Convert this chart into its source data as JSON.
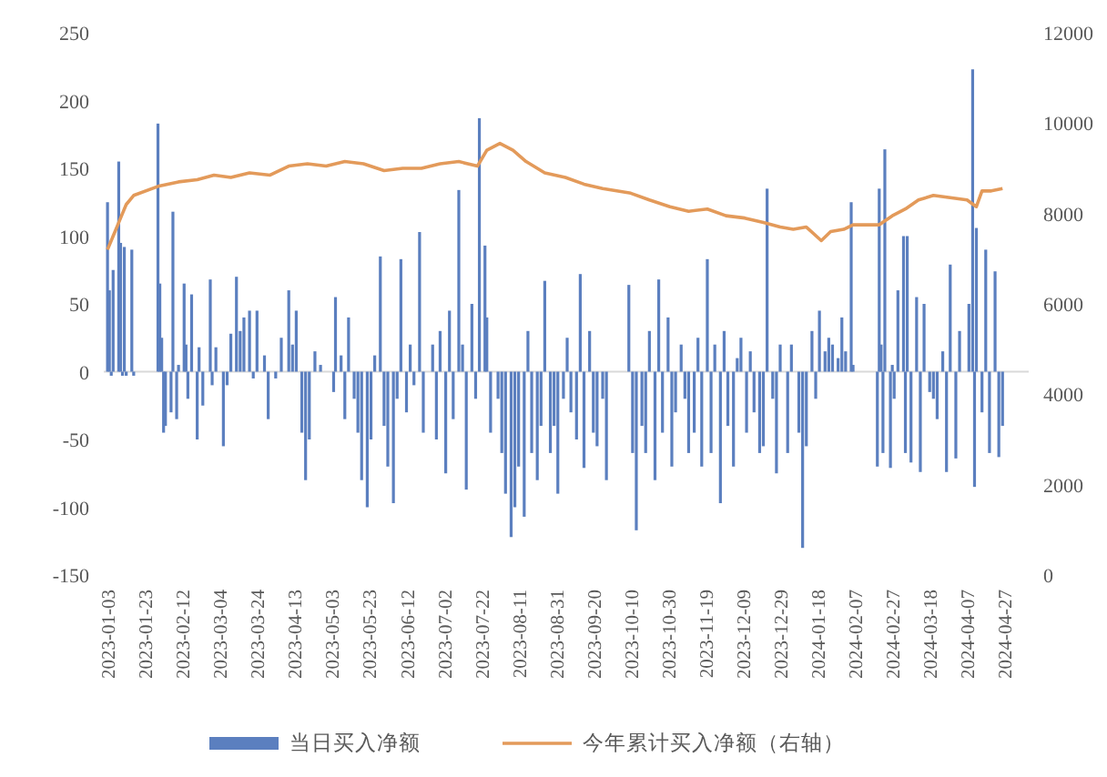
{
  "chart_data": {
    "type": "bar",
    "legend": "bottom",
    "xlim": [
      "2023-01-01",
      "2024-05-10"
    ],
    "xticks": [
      "2023-01-03",
      "2023-01-23",
      "2023-02-12",
      "2023-03-04",
      "2023-03-24",
      "2023-04-13",
      "2023-05-03",
      "2023-05-23",
      "2023-06-12",
      "2023-07-02",
      "2023-07-22",
      "2023-08-11",
      "2023-08-31",
      "2023-09-20",
      "2023-10-10",
      "2023-10-30",
      "2023-11-19",
      "2023-12-09",
      "2023-12-29",
      "2024-01-18",
      "2024-02-07",
      "2024-02-27",
      "2024-03-18",
      "2024-04-07",
      "2024-04-27"
    ],
    "ylim": [
      -150,
      250
    ],
    "yticks": [
      -150,
      -100,
      -50,
      0,
      50,
      100,
      150,
      200,
      250
    ],
    "y2lim": [
      0,
      12000
    ],
    "y2ticks": [
      0,
      2000,
      4000,
      6000,
      8000,
      10000,
      12000
    ],
    "series": [
      {
        "name": "当日买入净额",
        "color": "#5b7fbf",
        "x": [
          "2023-01-03",
          "2023-01-04",
          "2023-01-05",
          "2023-01-06",
          "2023-01-09",
          "2023-01-10",
          "2023-01-11",
          "2023-01-12",
          "2023-01-13",
          "2023-01-16",
          "2023-01-17",
          "2023-01-30",
          "2023-01-31",
          "2023-02-01",
          "2023-02-02",
          "2023-02-03",
          "2023-02-06",
          "2023-02-07",
          "2023-02-09",
          "2023-02-10",
          "2023-02-13",
          "2023-02-14",
          "2023-02-15",
          "2023-02-17",
          "2023-02-20",
          "2023-02-21",
          "2023-02-23",
          "2023-02-27",
          "2023-02-28",
          "2023-03-02",
          "2023-03-06",
          "2023-03-08",
          "2023-03-10",
          "2023-03-13",
          "2023-03-15",
          "2023-03-17",
          "2023-03-20",
          "2023-03-22",
          "2023-03-24",
          "2023-03-28",
          "2023-03-30",
          "2023-04-03",
          "2023-04-06",
          "2023-04-10",
          "2023-04-12",
          "2023-04-14",
          "2023-04-17",
          "2023-04-19",
          "2023-04-21",
          "2023-04-24",
          "2023-04-27",
          "2023-05-04",
          "2023-05-05",
          "2023-05-08",
          "2023-05-10",
          "2023-05-12",
          "2023-05-15",
          "2023-05-17",
          "2023-05-19",
          "2023-05-22",
          "2023-05-24",
          "2023-05-26",
          "2023-05-29",
          "2023-05-31",
          "2023-06-02",
          "2023-06-05",
          "2023-06-07",
          "2023-06-09",
          "2023-06-12",
          "2023-06-14",
          "2023-06-16",
          "2023-06-19",
          "2023-06-21",
          "2023-06-26",
          "2023-06-28",
          "2023-06-30",
          "2023-07-03",
          "2023-07-05",
          "2023-07-07",
          "2023-07-10",
          "2023-07-12",
          "2023-07-14",
          "2023-07-17",
          "2023-07-19",
          "2023-07-21",
          "2023-07-24",
          "2023-07-25",
          "2023-07-27",
          "2023-07-31",
          "2023-08-02",
          "2023-08-04",
          "2023-08-07",
          "2023-08-09",
          "2023-08-11",
          "2023-08-14",
          "2023-08-16",
          "2023-08-18",
          "2023-08-21",
          "2023-08-23",
          "2023-08-25",
          "2023-08-28",
          "2023-08-30",
          "2023-09-01",
          "2023-09-04",
          "2023-09-06",
          "2023-09-08",
          "2023-09-11",
          "2023-09-13",
          "2023-09-15",
          "2023-09-18",
          "2023-09-20",
          "2023-09-22",
          "2023-09-25",
          "2023-09-27",
          "2023-10-09",
          "2023-10-11",
          "2023-10-13",
          "2023-10-16",
          "2023-10-18",
          "2023-10-20",
          "2023-10-23",
          "2023-10-25",
          "2023-10-27",
          "2023-10-30",
          "2023-11-01",
          "2023-11-03",
          "2023-11-06",
          "2023-11-08",
          "2023-11-10",
          "2023-11-13",
          "2023-11-15",
          "2023-11-17",
          "2023-11-20",
          "2023-11-22",
          "2023-11-24",
          "2023-11-27",
          "2023-11-29",
          "2023-12-01",
          "2023-12-04",
          "2023-12-06",
          "2023-12-08",
          "2023-12-11",
          "2023-12-13",
          "2023-12-15",
          "2023-12-18",
          "2023-12-20",
          "2023-12-22",
          "2023-12-25",
          "2023-12-27",
          "2023-12-29",
          "2024-01-02",
          "2024-01-04",
          "2024-01-08",
          "2024-01-10",
          "2024-01-12",
          "2024-01-15",
          "2024-01-17",
          "2024-01-19",
          "2024-01-22",
          "2024-01-24",
          "2024-01-26",
          "2024-01-29",
          "2024-01-31",
          "2024-02-02",
          "2024-02-05",
          "2024-02-06",
          "2024-02-19",
          "2024-02-20",
          "2024-02-21",
          "2024-02-22",
          "2024-02-23",
          "2024-02-26",
          "2024-02-27",
          "2024-02-28",
          "2024-03-01",
          "2024-03-04",
          "2024-03-05",
          "2024-03-06",
          "2024-03-08",
          "2024-03-11",
          "2024-03-13",
          "2024-03-15",
          "2024-03-18",
          "2024-03-20",
          "2024-03-22",
          "2024-03-25",
          "2024-03-27",
          "2024-03-29",
          "2024-04-01",
          "2024-04-03",
          "2024-04-08",
          "2024-04-10",
          "2024-04-11",
          "2024-04-12",
          "2024-04-15",
          "2024-04-17",
          "2024-04-19",
          "2024-04-22",
          "2024-04-24",
          "2024-04-26"
        ],
        "values": [
          125,
          60,
          -3,
          75,
          155,
          95,
          -3,
          92,
          -3,
          90,
          -3,
          183,
          65,
          25,
          -45,
          -40,
          -30,
          118,
          -35,
          5,
          65,
          20,
          -20,
          57,
          -50,
          18,
          -25,
          68,
          -10,
          18,
          -55,
          -10,
          28,
          70,
          30,
          40,
          45,
          -5,
          45,
          12,
          -35,
          -5,
          25,
          60,
          20,
          45,
          -45,
          -80,
          -50,
          15,
          5,
          -15,
          55,
          12,
          -35,
          40,
          -20,
          -45,
          -80,
          -100,
          -50,
          12,
          85,
          -40,
          -70,
          -97,
          -20,
          83,
          -30,
          20,
          -10,
          103,
          -45,
          20,
          -50,
          30,
          -75,
          45,
          -35,
          134,
          20,
          -87,
          50,
          -20,
          187,
          93,
          40,
          -45,
          -20,
          -60,
          -90,
          -122,
          -100,
          -70,
          -107,
          30,
          -60,
          -80,
          -40,
          67,
          -60,
          -40,
          -90,
          -20,
          25,
          -30,
          -50,
          72,
          -71,
          30,
          -45,
          -55,
          -20,
          -80,
          64,
          -60,
          -117,
          -40,
          -60,
          30,
          -80,
          68,
          -45,
          40,
          -70,
          -30,
          20,
          -20,
          -60,
          -45,
          25,
          -70,
          83,
          -60,
          20,
          -97,
          30,
          -40,
          -70,
          10,
          25,
          -45,
          15,
          -30,
          -60,
          -55,
          135,
          -20,
          -75,
          20,
          -60,
          20,
          -45,
          -130,
          -55,
          30,
          -20,
          45,
          15,
          25,
          20,
          10,
          40,
          15,
          125,
          5,
          -70,
          135,
          20,
          -60,
          164,
          -71,
          5,
          -20,
          60,
          100,
          -60,
          100,
          -67,
          55,
          -74,
          50,
          -15,
          -20,
          -35,
          15,
          -74,
          79,
          -64,
          30,
          50,
          223,
          -85,
          106,
          -30,
          90,
          -60,
          74,
          -63,
          -40
        ]
      },
      {
        "name": "今年累计买入净额（右轴）",
        "type": "line",
        "axis": "y2",
        "color": "#e39a5a",
        "x": [
          "2023-01-03",
          "2023-01-06",
          "2023-01-10",
          "2023-01-13",
          "2023-01-17",
          "2023-01-30",
          "2023-02-10",
          "2023-02-20",
          "2023-03-01",
          "2023-03-10",
          "2023-03-20",
          "2023-03-31",
          "2023-04-10",
          "2023-04-20",
          "2023-04-30",
          "2023-05-10",
          "2023-05-20",
          "2023-05-31",
          "2023-06-10",
          "2023-06-20",
          "2023-06-30",
          "2023-07-10",
          "2023-07-20",
          "2023-07-25",
          "2023-08-01",
          "2023-08-08",
          "2023-08-15",
          "2023-08-25",
          "2023-09-05",
          "2023-09-15",
          "2023-09-25",
          "2023-10-10",
          "2023-10-20",
          "2023-10-31",
          "2023-11-10",
          "2023-11-20",
          "2023-11-30",
          "2023-12-10",
          "2023-12-20",
          "2023-12-29",
          "2024-01-05",
          "2024-01-12",
          "2024-01-20",
          "2024-01-25",
          "2024-02-01",
          "2024-02-06",
          "2024-02-20",
          "2024-02-27",
          "2024-03-05",
          "2024-03-12",
          "2024-03-20",
          "2024-03-29",
          "2024-04-07",
          "2024-04-12",
          "2024-04-15",
          "2024-04-20",
          "2024-04-26"
        ],
        "values": [
          7200,
          7500,
          7900,
          8200,
          8400,
          8600,
          8700,
          8750,
          8850,
          8800,
          8900,
          8850,
          9050,
          9100,
          9050,
          9150,
          9100,
          8950,
          9000,
          9000,
          9100,
          9150,
          9050,
          9400,
          9550,
          9400,
          9150,
          8900,
          8800,
          8650,
          8550,
          8450,
          8300,
          8150,
          8050,
          8100,
          7950,
          7900,
          7800,
          7700,
          7650,
          7700,
          7400,
          7600,
          7650,
          7750,
          7750,
          7950,
          8100,
          8300,
          8400,
          8350,
          8300,
          8150,
          8500,
          8500,
          8550
        ]
      }
    ]
  }
}
